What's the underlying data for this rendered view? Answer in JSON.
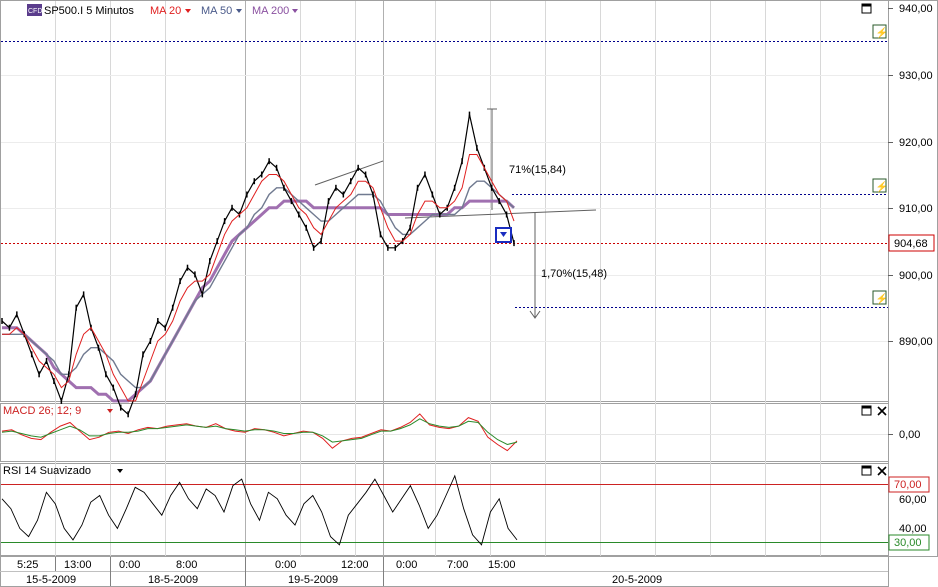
{
  "colors": {
    "price_candles": "#000000",
    "ma20": "#e02020",
    "ma50": "#707a90",
    "ma200": "#a070b0",
    "grid_dash": "#00008b",
    "current_price_line": "#cc0000",
    "macd_line": "#e02020",
    "macd_signal": "#2a8a2a",
    "rsi_line": "#000000",
    "rsi_upper": "#cc2222",
    "rsi_lower": "#2a8a2a",
    "panel_border": "#a0a0a0"
  },
  "header": {
    "instrument_badge": "CFD",
    "instrument_label": "SP500.I 5 Minutos",
    "ma20_label": "MA 20",
    "ma50_label": "MA 50",
    "ma200_label": "MA 200",
    "macd_label": "MACD 26; 12; 9",
    "rsi_label": "RSI 14 Suavizado"
  },
  "chart_data": [
    {
      "type": "line",
      "panel": "price",
      "y_ticks": [
        "940,00",
        "930,00",
        "920,00",
        "910,00",
        "900,00",
        "890,00"
      ],
      "ylim": [
        880,
        941
      ],
      "current_price_label": "904,68",
      "current_price": 904.68,
      "resistance_levels": [
        935.0,
        912.0
      ],
      "support_level": 895.0,
      "annotations": [
        {
          "text": "71%(15,84)"
        },
        {
          "text": "1,70%(15,48)"
        }
      ],
      "series": [
        {
          "key": "price",
          "values": [
            893,
            892,
            894,
            891,
            888,
            885,
            887,
            884,
            881,
            885,
            895,
            897,
            892,
            889,
            885,
            883,
            880,
            879,
            882,
            888,
            890,
            893,
            892,
            895,
            899,
            901,
            900,
            897,
            902,
            905,
            908,
            910,
            909,
            912,
            914,
            915,
            917,
            916,
            913,
            911,
            909,
            907,
            904,
            905,
            911,
            913,
            912,
            914,
            916,
            915,
            912,
            906,
            904,
            904,
            905,
            907,
            913,
            915,
            912,
            909,
            910,
            913,
            917,
            924,
            919,
            916,
            913,
            911,
            909,
            904.7
          ]
        },
        {
          "key": "ma20",
          "values": [
            891,
            891,
            892,
            891,
            889,
            887,
            886,
            885,
            883,
            884,
            888,
            891,
            892,
            890,
            888,
            885,
            883,
            881,
            881,
            884,
            887,
            890,
            891,
            893,
            896,
            898,
            899,
            899,
            900,
            903,
            906,
            908,
            909,
            910,
            912,
            914,
            915,
            915,
            914,
            912,
            910,
            909,
            907,
            906,
            908,
            910,
            911,
            912,
            914,
            914,
            913,
            910,
            907,
            905,
            905,
            906,
            909,
            911,
            911,
            910,
            910,
            911,
            913,
            918,
            918,
            916,
            914,
            912,
            911,
            908
          ]
        },
        {
          "key": "ma50",
          "values": [
            891,
            891,
            891,
            891,
            890,
            889,
            888,
            887,
            885,
            885,
            886,
            888,
            889,
            889,
            888,
            887,
            885,
            884,
            883,
            883,
            884,
            886,
            888,
            890,
            892,
            894,
            896,
            897,
            898,
            900,
            902,
            904,
            906,
            907,
            909,
            910,
            912,
            913,
            913,
            912,
            911,
            910,
            909,
            908,
            908,
            909,
            910,
            911,
            912,
            912,
            912,
            911,
            909,
            907,
            906,
            906,
            907,
            908,
            909,
            909,
            909,
            909,
            910,
            913,
            914,
            914,
            913,
            912,
            911,
            910
          ]
        },
        {
          "key": "ma200",
          "values": [
            892,
            892,
            892,
            891,
            890,
            889,
            888,
            886,
            885,
            884,
            883,
            883,
            883,
            882,
            882,
            881,
            881,
            881,
            882,
            883,
            884,
            886,
            888,
            890,
            892,
            894,
            896,
            898,
            899,
            901,
            903,
            905,
            906,
            907,
            908,
            909,
            910,
            910,
            911,
            911,
            911,
            911,
            910,
            910,
            910,
            910,
            910,
            910,
            910,
            910,
            910,
            910,
            909,
            909,
            909,
            909,
            909,
            909,
            909,
            909,
            909,
            910,
            910,
            911,
            911,
            911,
            911,
            911,
            911,
            910
          ]
        }
      ]
    },
    {
      "type": "line",
      "panel": "macd",
      "y_ticks": [
        "0,00"
      ],
      "ylim": [
        -2,
        2
      ],
      "series": [
        {
          "key": "macd",
          "values": [
            0.2,
            0.3,
            -0.1,
            -0.4,
            -0.5,
            0.1,
            0.6,
            0.9,
            0.2,
            -0.5,
            -0.3,
            0.1,
            0.2,
            0.0,
            0.3,
            0.5,
            0.4,
            0.6,
            0.7,
            0.8,
            0.6,
            0.5,
            0.8,
            0.4,
            0.2,
            0.1,
            0.4,
            0.3,
            0.1,
            -0.2,
            0.0,
            0.2,
            0.1,
            -0.4,
            -1.2,
            -0.6,
            -0.4,
            -0.3,
            0.0,
            0.3,
            0.2,
            0.5,
            0.9,
            1.6,
            0.7,
            0.5,
            0.4,
            0.6,
            1.3,
            1.0,
            -0.3,
            -0.9,
            -1.4,
            -0.6
          ]
        },
        {
          "key": "signal",
          "values": [
            0.1,
            0.2,
            0.0,
            -0.2,
            -0.3,
            0.0,
            0.3,
            0.6,
            0.3,
            -0.2,
            -0.2,
            0.0,
            0.1,
            0.1,
            0.2,
            0.4,
            0.4,
            0.5,
            0.6,
            0.7,
            0.6,
            0.5,
            0.6,
            0.4,
            0.3,
            0.2,
            0.3,
            0.3,
            0.2,
            0.0,
            0.0,
            0.1,
            0.1,
            -0.2,
            -0.7,
            -0.6,
            -0.5,
            -0.4,
            -0.1,
            0.2,
            0.2,
            0.4,
            0.7,
            1.2,
            0.8,
            0.6,
            0.5,
            0.6,
            1.0,
            0.9,
            0.1,
            -0.5,
            -0.9,
            -0.7
          ]
        }
      ]
    },
    {
      "type": "line",
      "panel": "rsi",
      "y_ticks": [
        "70,00",
        "60,00",
        "40,00",
        "30,00"
      ],
      "ylim": [
        25,
        78
      ],
      "upper_level_label": "70,00",
      "lower_level_label": "30,00",
      "series": [
        {
          "key": "rsi",
          "values": [
            58,
            52,
            40,
            35,
            45,
            62,
            55,
            40,
            33,
            42,
            56,
            60,
            48,
            40,
            52,
            65,
            62,
            55,
            48,
            60,
            68,
            58,
            52,
            64,
            60,
            50,
            66,
            70,
            55,
            45,
            62,
            58,
            48,
            42,
            55,
            60,
            50,
            35,
            30,
            48,
            55,
            62,
            70,
            60,
            50,
            58,
            66,
            54,
            40,
            48,
            60,
            72,
            52,
            36,
            30,
            50,
            58,
            40,
            33
          ]
        }
      ]
    }
  ],
  "x_axis": {
    "time_ticks": [
      "5:25",
      "13:00",
      "0:00",
      "8:00",
      "0:00",
      "12:00",
      "0:00",
      "7:00",
      "15:00"
    ],
    "date_labels": [
      "15-5-2009",
      "18-5-2009",
      "19-5-2009",
      "20-5-2009"
    ]
  }
}
